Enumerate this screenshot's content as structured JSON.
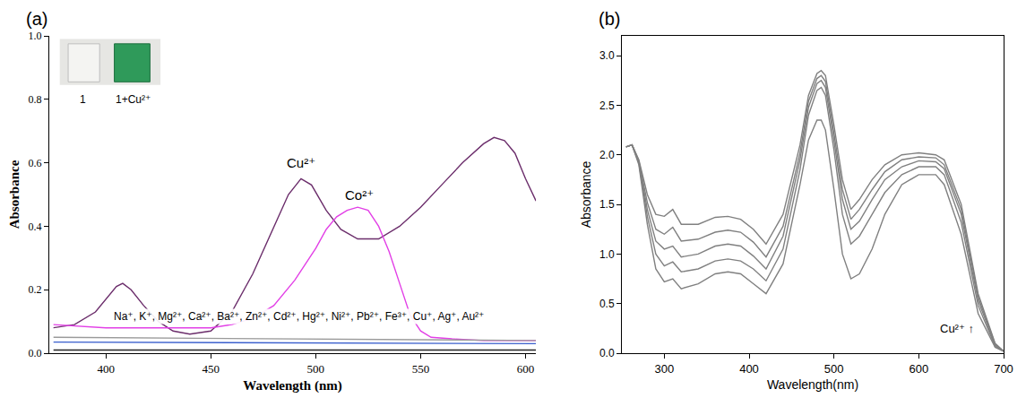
{
  "chart_data": [
    {
      "type": "line",
      "title": "(a)",
      "x_label": "Wavelength (nm)",
      "y_label": "Absorbance",
      "xlim": [
        373,
        605
      ],
      "xticks": [
        400,
        450,
        500,
        550,
        600
      ],
      "ylim": [
        0,
        1
      ],
      "yticks": [
        {
          "value": 0,
          "label": "0.0"
        },
        0.2,
        0.4,
        0.6,
        0.8,
        {
          "value": 1,
          "label": "1.0"
        }
      ],
      "grid": false,
      "annotations": [
        {
          "text": "Cu²⁺",
          "x": 493,
          "y": 0.6
        },
        {
          "text": "Co²⁺",
          "x": 521,
          "y": 0.5
        },
        {
          "text": "Na⁺, K⁺, Mg²⁺, Ca²⁺, Ba²⁺, Zn²⁺, Cd²⁺, Hg²⁺, Ni²⁺, Pb²⁺, Fe³⁺, Cu⁺, Ag⁺, Au²⁺",
          "x": 492,
          "y": 0.115
        },
        {
          "text": "1",
          "x": 389,
          "y": 0.8
        },
        {
          "text": "1+Cu²⁺",
          "x": 413,
          "y": 0.8
        }
      ],
      "series": [
        {
          "name": "Cu²⁺",
          "color": "#6b2d6b",
          "x": [
            375,
            385,
            395,
            400,
            405,
            408,
            412,
            418,
            425,
            432,
            440,
            450,
            460,
            470,
            480,
            487,
            493,
            498,
            505,
            512,
            520,
            530,
            540,
            550,
            560,
            570,
            580,
            585,
            590,
            595,
            600,
            605
          ],
          "values": [
            0.08,
            0.09,
            0.13,
            0.17,
            0.21,
            0.22,
            0.2,
            0.15,
            0.1,
            0.07,
            0.06,
            0.07,
            0.13,
            0.25,
            0.4,
            0.5,
            0.55,
            0.53,
            0.45,
            0.39,
            0.36,
            0.36,
            0.4,
            0.46,
            0.53,
            0.6,
            0.66,
            0.68,
            0.67,
            0.63,
            0.55,
            0.48
          ]
        },
        {
          "name": "Co²⁺",
          "color": "#e23fe6",
          "x": [
            375,
            400,
            425,
            450,
            460,
            470,
            480,
            490,
            500,
            505,
            510,
            515,
            520,
            525,
            530,
            535,
            540,
            545,
            550,
            555,
            565,
            580,
            605
          ],
          "values": [
            0.09,
            0.08,
            0.08,
            0.08,
            0.09,
            0.11,
            0.15,
            0.23,
            0.33,
            0.39,
            0.43,
            0.45,
            0.46,
            0.45,
            0.4,
            0.32,
            0.22,
            0.12,
            0.07,
            0.05,
            0.045,
            0.04,
            0.04
          ]
        },
        {
          "name": "Na⁺, K⁺, Mg²⁺, Ca²⁺, Ba²⁺, Zn²⁺, Cd²⁺, Hg²⁺, Ni²⁺, Pb²⁺, Fe³⁺, Cu⁺, Ag⁺, Au²⁺",
          "color": "#9a9a9a",
          "x": [
            375,
            605
          ],
          "values": [
            0.05,
            0.04
          ]
        },
        {
          "name": "Na⁺, K⁺, Mg²⁺, Ca²⁺, Ba²⁺, Zn²⁺, Cd²⁺, Hg²⁺, Ni²⁺, Pb²⁺, Fe³⁺, Cu⁺, Ag⁺, Au²⁺",
          "color": "#3a5fcd",
          "x": [
            375,
            605
          ],
          "values": [
            0.035,
            0.03
          ]
        },
        {
          "name": "Na⁺, K⁺, Mg²⁺, Ca²⁺, Ba²⁺, Zn²⁺, Cd²⁺, Hg²⁺, Ni²⁺, Pb²⁺, Fe³⁺, Cu⁺, Ag⁺, Au²⁺",
          "color": "#222222",
          "x": [
            375,
            605
          ],
          "values": [
            0.01,
            0.01
          ]
        }
      ]
    },
    {
      "type": "line",
      "title": "(b)",
      "x_label": "Wavelength(nm)",
      "y_label": "Absorbance",
      "xlim": [
        250,
        700
      ],
      "xticks": [
        300,
        400,
        500,
        600,
        700
      ],
      "ylim": [
        0,
        3.2
      ],
      "yticks": [
        {
          "value": 0,
          "label": "0.0"
        },
        0.5,
        {
          "value": 1,
          "label": "1.0"
        },
        1.5,
        {
          "value": 2,
          "label": "2.0"
        },
        2.5,
        {
          "value": 3,
          "label": "3.0"
        }
      ],
      "grid": false,
      "annotations": [
        {
          "text": "Cu²⁺ ↑",
          "x": 645,
          "y": 0.25
        }
      ],
      "series": [
        {
          "color": "#808080",
          "x": [
            255,
            262,
            270,
            280,
            290,
            300,
            310,
            320,
            340,
            360,
            375,
            390,
            405,
            420,
            440,
            460,
            470,
            480,
            485,
            490,
            500,
            510,
            520,
            530,
            545,
            560,
            580,
            600,
            620,
            630,
            650,
            670,
            690,
            700
          ],
          "values": [
            2.08,
            2.1,
            1.9,
            1.3,
            0.85,
            0.72,
            0.75,
            0.65,
            0.7,
            0.8,
            0.82,
            0.8,
            0.7,
            0.6,
            0.9,
            1.7,
            2.15,
            2.35,
            2.35,
            2.25,
            1.65,
            1.0,
            0.75,
            0.8,
            1.05,
            1.4,
            1.7,
            1.8,
            1.8,
            1.7,
            1.2,
            0.4,
            0.06,
            0.02
          ]
        },
        {
          "color": "#808080",
          "x": [
            255,
            262,
            270,
            280,
            290,
            300,
            310,
            320,
            340,
            360,
            375,
            390,
            405,
            420,
            440,
            460,
            470,
            480,
            485,
            490,
            500,
            510,
            520,
            530,
            545,
            560,
            580,
            600,
            620,
            630,
            650,
            670,
            690,
            700
          ],
          "values": [
            2.08,
            2.1,
            1.92,
            1.38,
            1.0,
            0.88,
            0.92,
            0.82,
            0.85,
            0.93,
            0.95,
            0.93,
            0.85,
            0.73,
            1.05,
            1.85,
            2.4,
            2.65,
            2.68,
            2.6,
            2.05,
            1.4,
            1.1,
            1.18,
            1.4,
            1.62,
            1.8,
            1.88,
            1.88,
            1.8,
            1.32,
            0.48,
            0.07,
            0.02
          ]
        },
        {
          "color": "#808080",
          "x": [
            255,
            262,
            270,
            280,
            290,
            300,
            310,
            320,
            340,
            360,
            375,
            390,
            405,
            420,
            440,
            460,
            470,
            480,
            485,
            490,
            500,
            510,
            520,
            530,
            545,
            560,
            580,
            600,
            620,
            630,
            650,
            670,
            690,
            700
          ],
          "values": [
            2.08,
            2.1,
            1.93,
            1.45,
            1.13,
            1.05,
            1.08,
            0.97,
            1.0,
            1.08,
            1.1,
            1.08,
            0.98,
            0.85,
            1.18,
            1.95,
            2.48,
            2.72,
            2.75,
            2.68,
            2.15,
            1.55,
            1.25,
            1.33,
            1.55,
            1.75,
            1.88,
            1.94,
            1.93,
            1.86,
            1.4,
            0.53,
            0.08,
            0.02
          ]
        },
        {
          "color": "#808080",
          "x": [
            255,
            262,
            270,
            280,
            290,
            300,
            310,
            320,
            340,
            360,
            375,
            390,
            405,
            420,
            440,
            460,
            470,
            480,
            485,
            490,
            500,
            510,
            520,
            530,
            545,
            560,
            580,
            600,
            620,
            630,
            650,
            670,
            690,
            700
          ],
          "values": [
            2.08,
            2.1,
            1.94,
            1.52,
            1.25,
            1.2,
            1.27,
            1.13,
            1.15,
            1.22,
            1.24,
            1.22,
            1.12,
            0.97,
            1.28,
            2.02,
            2.54,
            2.77,
            2.8,
            2.74,
            2.22,
            1.65,
            1.35,
            1.45,
            1.65,
            1.83,
            1.95,
            1.98,
            1.97,
            1.9,
            1.45,
            0.57,
            0.09,
            0.02
          ]
        },
        {
          "color": "#808080",
          "x": [
            255,
            262,
            270,
            280,
            290,
            300,
            310,
            320,
            340,
            360,
            375,
            390,
            405,
            420,
            440,
            460,
            470,
            480,
            485,
            490,
            500,
            510,
            520,
            530,
            545,
            560,
            580,
            600,
            620,
            630,
            650,
            670,
            690,
            700
          ],
          "values": [
            2.08,
            2.1,
            1.95,
            1.6,
            1.4,
            1.38,
            1.45,
            1.3,
            1.3,
            1.37,
            1.38,
            1.35,
            1.25,
            1.1,
            1.4,
            2.1,
            2.6,
            2.82,
            2.85,
            2.8,
            2.3,
            1.75,
            1.45,
            1.55,
            1.75,
            1.9,
            2.0,
            2.02,
            2.0,
            1.95,
            1.5,
            0.6,
            0.1,
            0.02
          ]
        }
      ]
    }
  ]
}
